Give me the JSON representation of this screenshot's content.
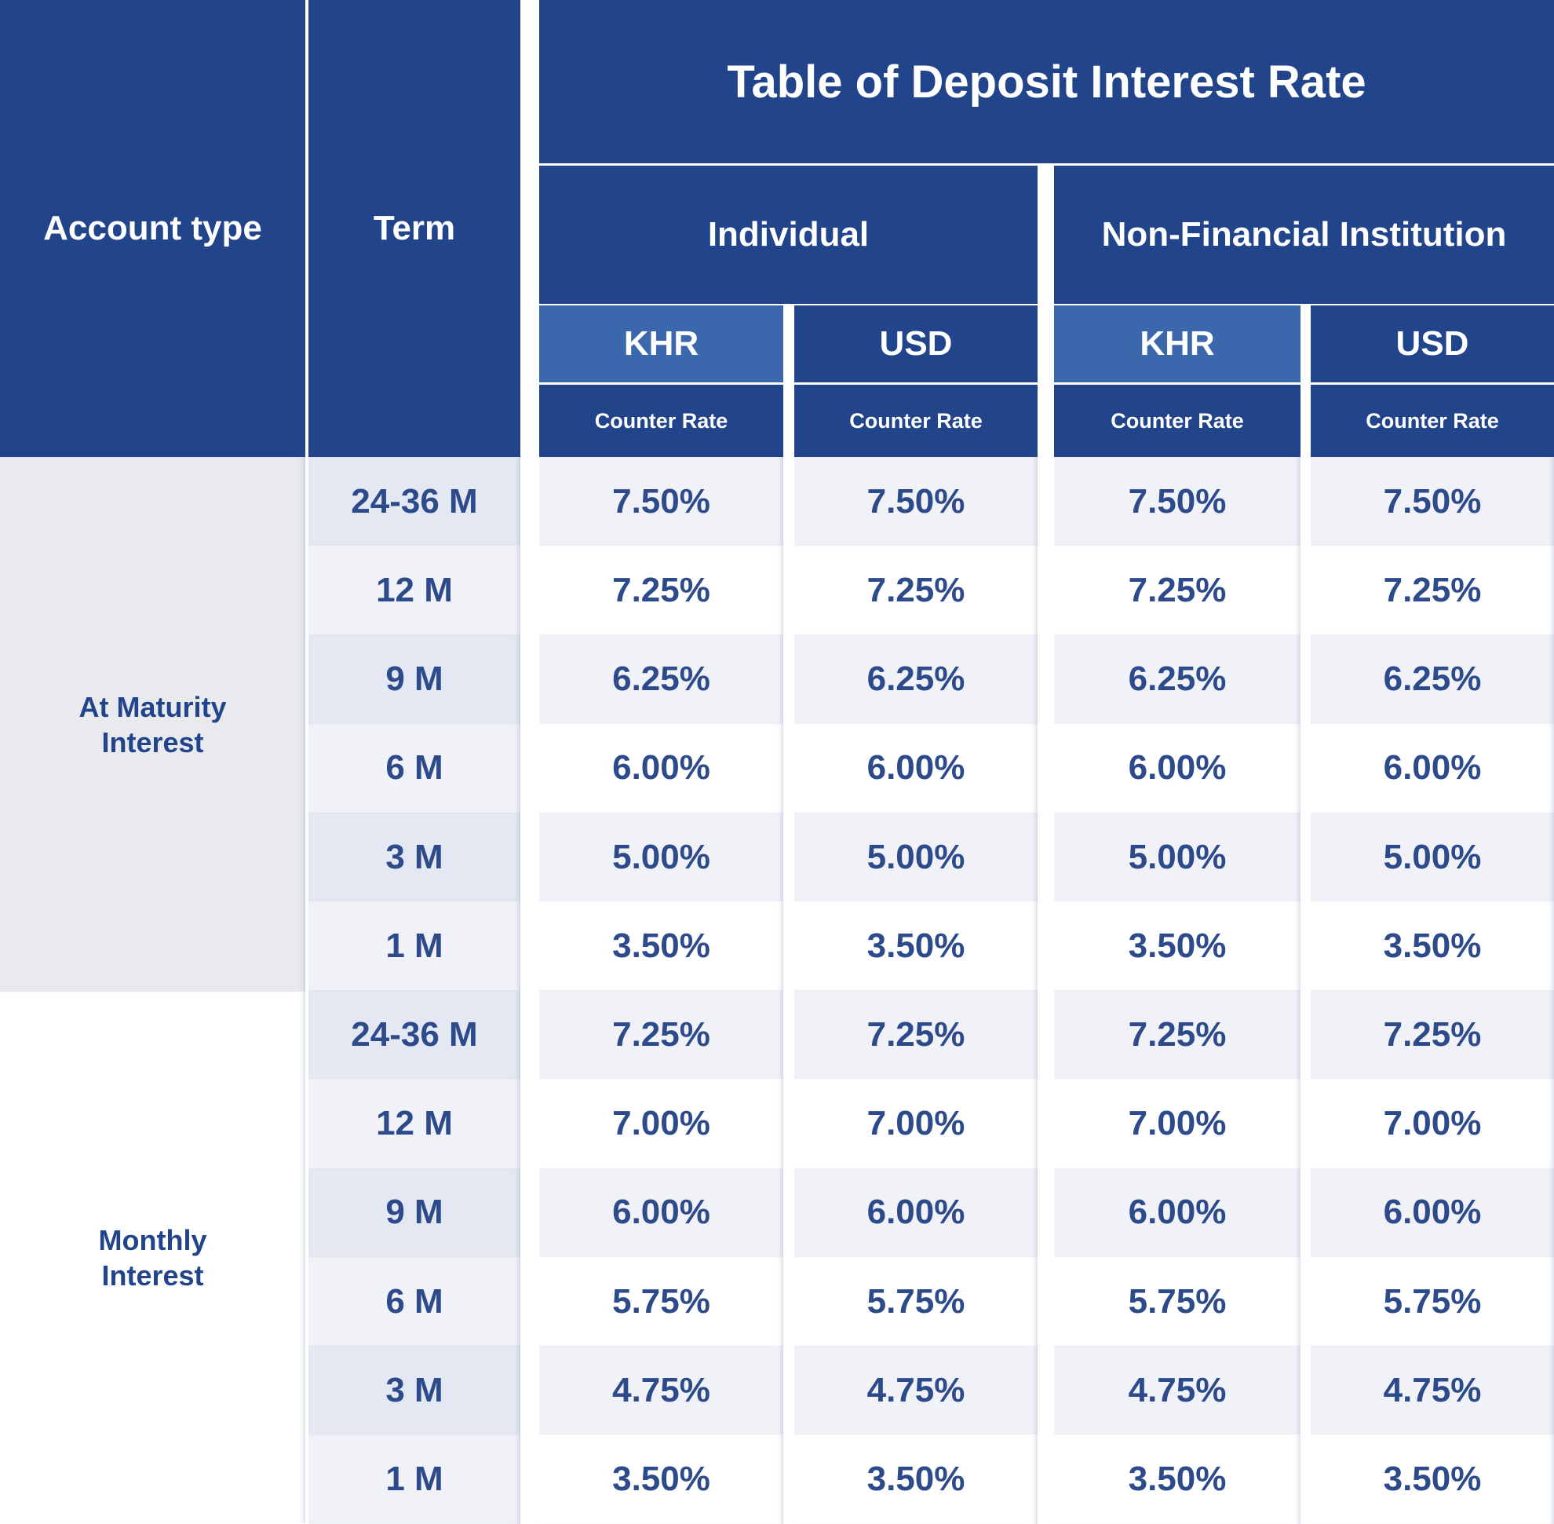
{
  "title": "Table of Deposit Interest Rate",
  "headers": {
    "account_type": "Account type",
    "term": "Term",
    "individual": "Individual",
    "non_financial": "Non-Financial Institution",
    "khr": "KHR",
    "usd": "USD",
    "counter_rate": "Counter Rate"
  },
  "account_types": [
    "At Maturity Interest",
    "Monthly Interest"
  ],
  "colors": {
    "navy": "#21448b",
    "khr_header": "#3b68ad",
    "text": "#2d4a8a"
  },
  "rows": [
    {
      "term": "24-36 M",
      "rates": [
        "7.50%",
        "7.50%",
        "7.50%",
        "7.50%"
      ]
    },
    {
      "term": "12 M",
      "rates": [
        "7.25%",
        "7.25%",
        "7.25%",
        "7.25%"
      ]
    },
    {
      "term": "9 M",
      "rates": [
        "6.25%",
        "6.25%",
        "6.25%",
        "6.25%"
      ]
    },
    {
      "term": "6 M",
      "rates": [
        "6.00%",
        "6.00%",
        "6.00%",
        "6.00%"
      ]
    },
    {
      "term": "3 M",
      "rates": [
        "5.00%",
        "5.00%",
        "5.00%",
        "5.00%"
      ]
    },
    {
      "term": "1 M",
      "rates": [
        "3.50%",
        "3.50%",
        "3.50%",
        "3.50%"
      ]
    },
    {
      "term": "24-36 M",
      "rates": [
        "7.25%",
        "7.25%",
        "7.25%",
        "7.25%"
      ]
    },
    {
      "term": "12 M",
      "rates": [
        "7.00%",
        "7.00%",
        "7.00%",
        "7.00%"
      ]
    },
    {
      "term": "9 M",
      "rates": [
        "6.00%",
        "6.00%",
        "6.00%",
        "6.00%"
      ]
    },
    {
      "term": "6 M",
      "rates": [
        "5.75%",
        "5.75%",
        "5.75%",
        "5.75%"
      ]
    },
    {
      "term": "3 M",
      "rates": [
        "4.75%",
        "4.75%",
        "4.75%",
        "4.75%"
      ]
    },
    {
      "term": "1 M",
      "rates": [
        "3.50%",
        "3.50%",
        "3.50%",
        "3.50%"
      ]
    }
  ]
}
